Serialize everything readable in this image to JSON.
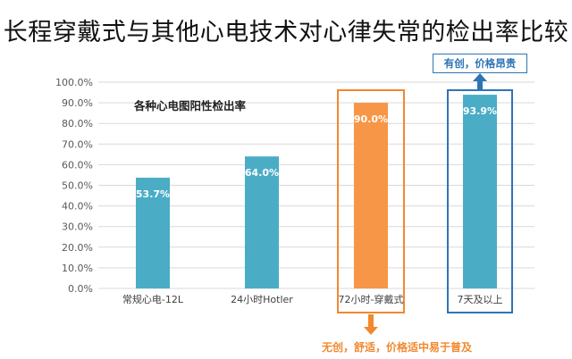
{
  "page_title": "长程穿戴式与其他心电技术对心律失常的检出率比较",
  "colors": {
    "bar_default": "#4BACC6",
    "bar_highlight": "#F79646",
    "box_highlight": "#F0892F",
    "box_accent": "#2E74B5",
    "grid": "#D9D9D9"
  },
  "chart_data": {
    "type": "bar",
    "title": "各种心电图阳性检出率",
    "categories": [
      "常规心电-12L",
      "24小时Hotler",
      "72小时-穿戴式",
      "7天及以上"
    ],
    "values": [
      53.7,
      64.0,
      90.0,
      93.9
    ],
    "data_labels": [
      "53.7%",
      "64.0%",
      "90.0%",
      "93.9%"
    ],
    "ylim": [
      0,
      100
    ],
    "yticks": [
      0,
      10,
      20,
      30,
      40,
      50,
      60,
      70,
      80,
      90,
      100
    ],
    "ytick_labels": [
      "0.0%",
      "10.0%",
      "20.0%",
      "30.0%",
      "40.0%",
      "50.0%",
      "60.0%",
      "70.0%",
      "80.0%",
      "90.0%",
      "100.0%"
    ],
    "grid": true,
    "legend": "none"
  },
  "annotations": {
    "top_callout": "有创，价格昂贵",
    "bottom_callout": "无创，舒适，价格适中易于普及"
  }
}
